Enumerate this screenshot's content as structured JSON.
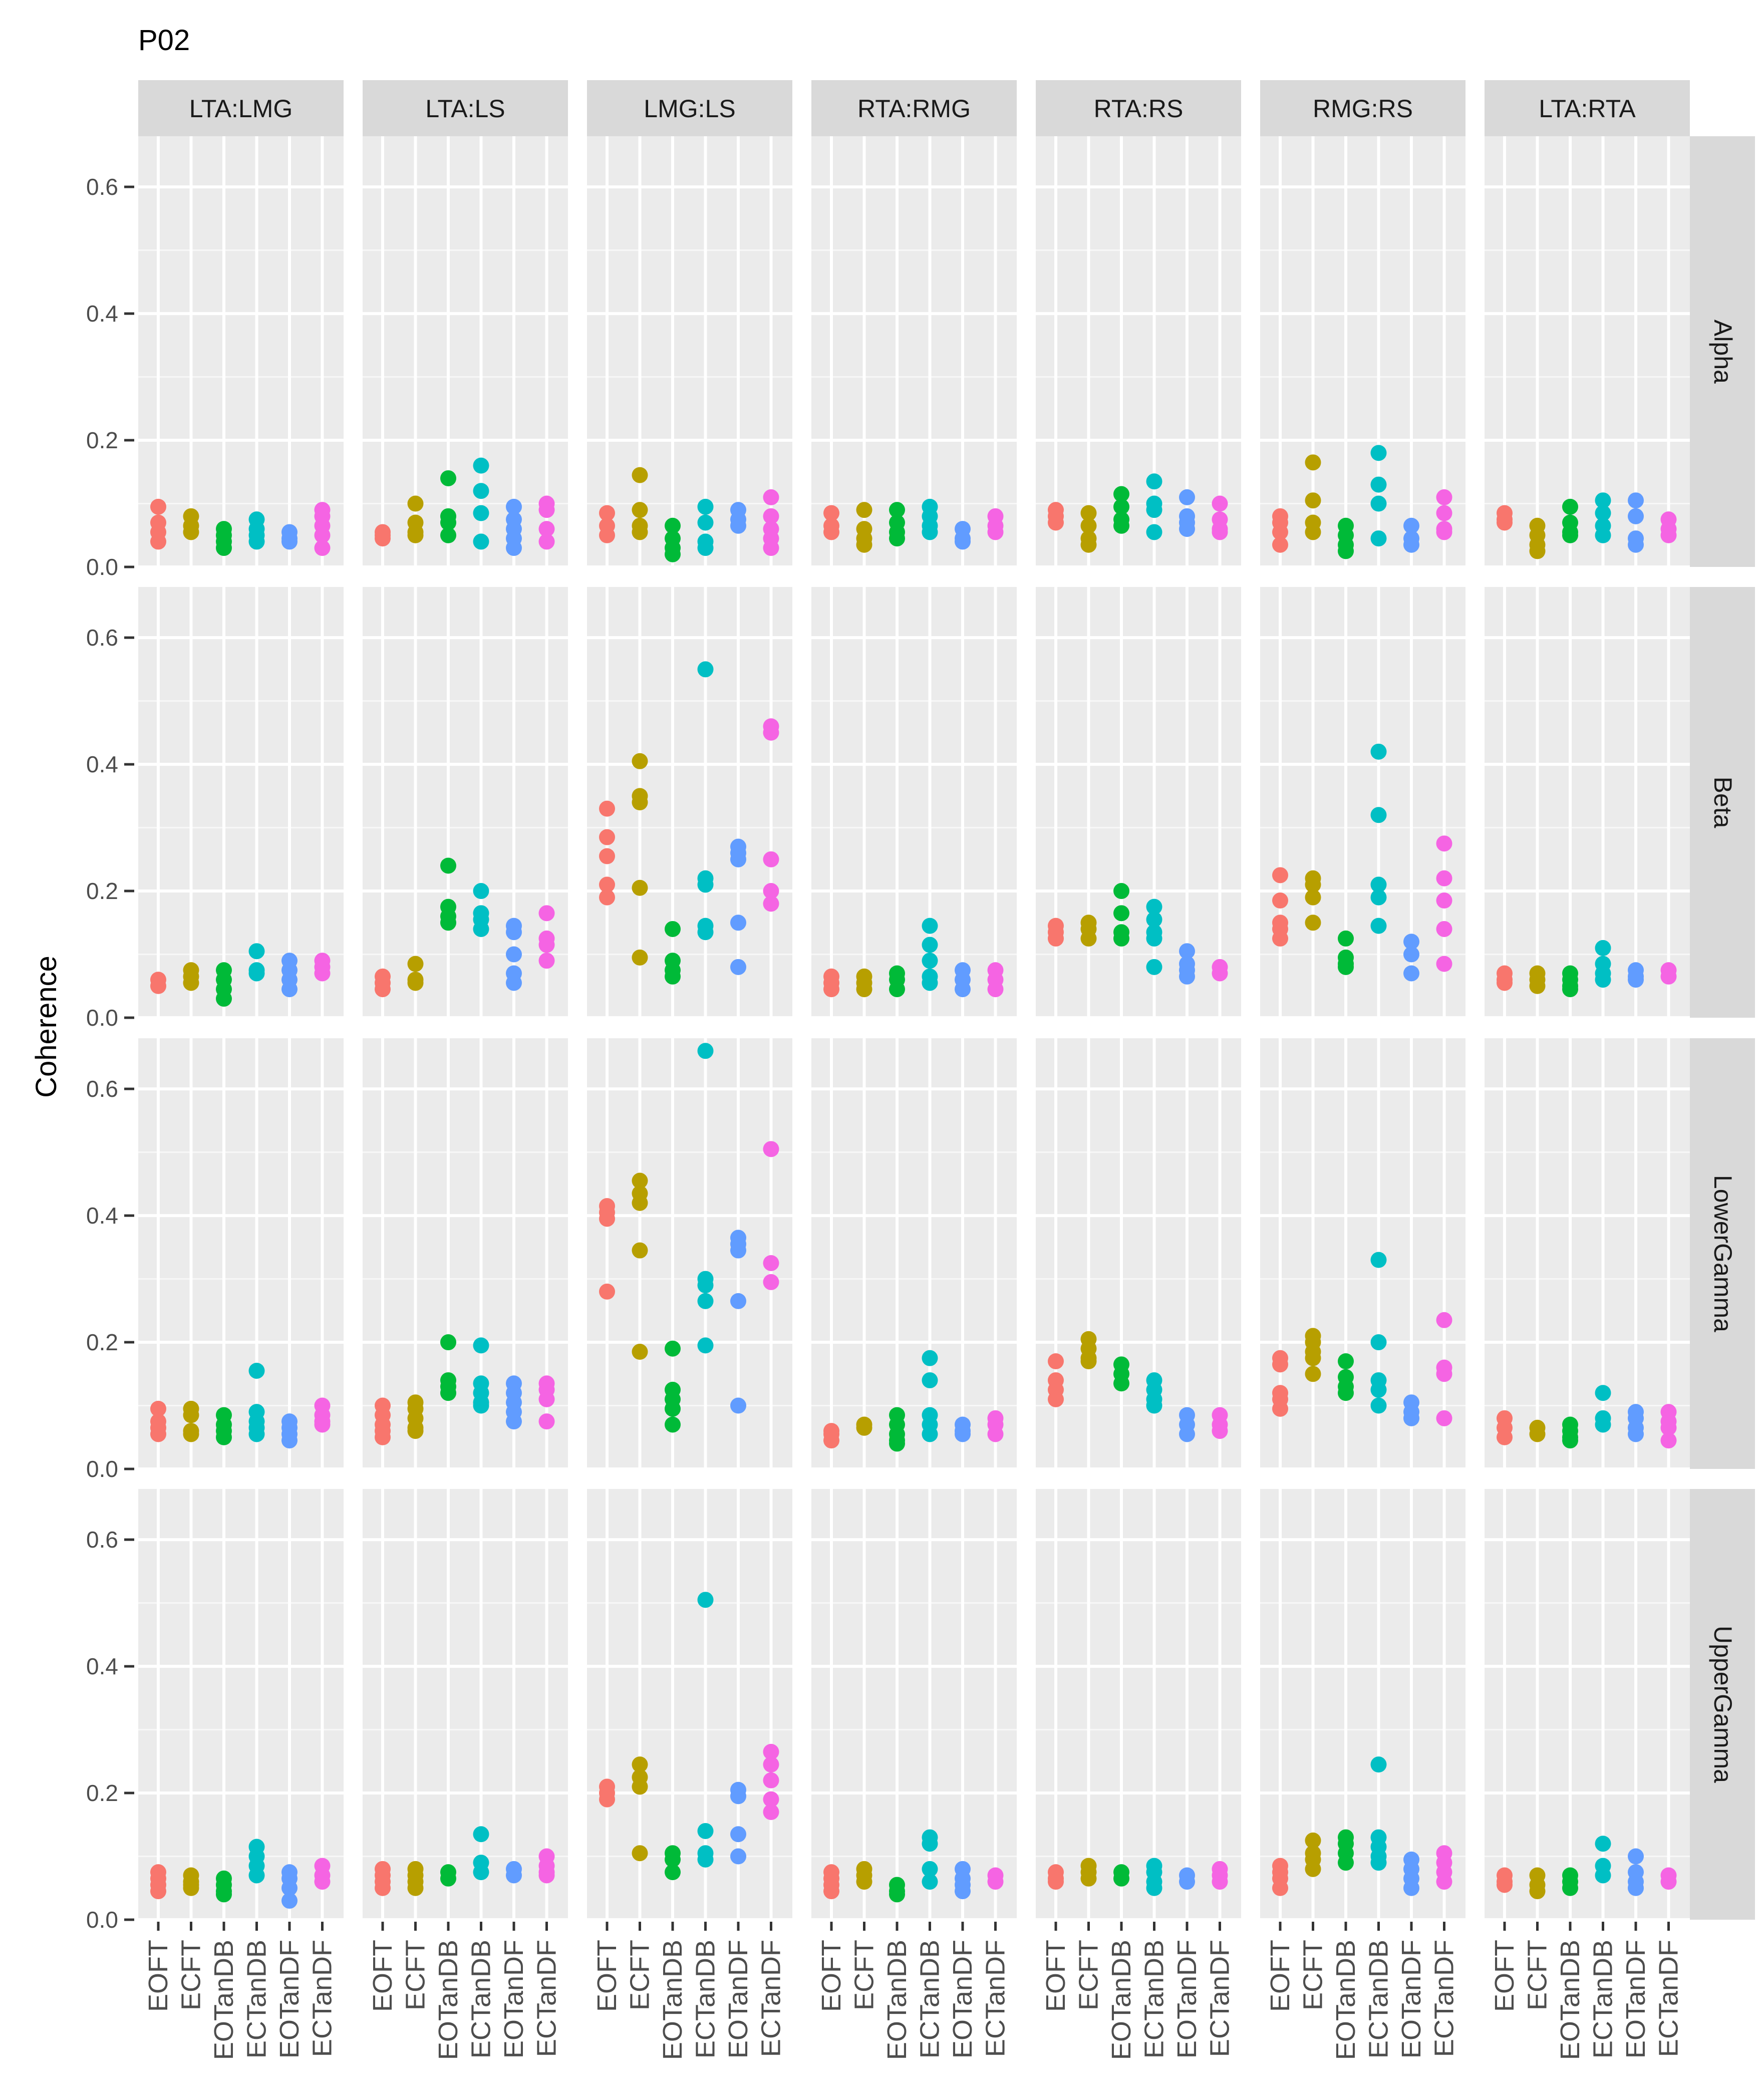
{
  "chart_data": {
    "type": "scatter",
    "title": "P02",
    "ylabel": "Coherence",
    "xlabel": "",
    "ylim": [
      0,
      0.68
    ],
    "yticks": [
      0.0,
      0.2,
      0.4,
      0.6
    ],
    "ytick_labels": [
      "0.0",
      "0.2",
      "0.4",
      "0.6"
    ],
    "grid": true,
    "legend": "none",
    "categories": [
      "EOFT",
      "ECFT",
      "EOTanDB",
      "ECTanDB",
      "EOTanDF",
      "ECTanDF"
    ],
    "colors": {
      "EOFT": "#F8766D",
      "ECFT": "#B79F00",
      "EOTanDB": "#00BA38",
      "ECTanDB": "#00BFC4",
      "EOTanDF": "#619CFF",
      "ECTanDF": "#F564E3"
    },
    "pairs": [
      "LTA:LMG",
      "LTA:LS",
      "LMG:LS",
      "RTA:RMG",
      "RTA:RS",
      "RMG:RS",
      "LTA:RTA"
    ],
    "bands": [
      "Alpha",
      "Beta",
      "LowerGamma",
      "UpperGamma"
    ],
    "values": {
      "Alpha": {
        "LTA:LMG": [
          [
            0.095,
            0.07,
            0.055,
            0.04
          ],
          [
            0.08,
            0.065,
            0.055
          ],
          [
            0.06,
            0.05,
            0.04,
            0.03
          ],
          [
            0.075,
            0.06,
            0.05,
            0.04
          ],
          [
            0.055,
            0.045,
            0.04
          ],
          [
            0.09,
            0.08,
            0.065,
            0.05,
            0.03
          ]
        ],
        "LTA:LS": [
          [
            0.055,
            0.05,
            0.045
          ],
          [
            0.1,
            0.07,
            0.055,
            0.05
          ],
          [
            0.14,
            0.08,
            0.07,
            0.05
          ],
          [
            0.16,
            0.12,
            0.085,
            0.04
          ],
          [
            0.095,
            0.075,
            0.06,
            0.045,
            0.03
          ],
          [
            0.1,
            0.09,
            0.06,
            0.04
          ]
        ],
        "LMG:LS": [
          [
            0.085,
            0.065,
            0.05
          ],
          [
            0.145,
            0.09,
            0.065,
            0.055
          ],
          [
            0.065,
            0.045,
            0.03,
            0.02
          ],
          [
            0.095,
            0.07,
            0.04,
            0.03
          ],
          [
            0.09,
            0.075,
            0.065
          ],
          [
            0.11,
            0.08,
            0.06,
            0.045,
            0.03
          ]
        ],
        "RTA:RMG": [
          [
            0.085,
            0.065,
            0.055
          ],
          [
            0.09,
            0.06,
            0.045,
            0.035
          ],
          [
            0.09,
            0.07,
            0.055,
            0.045
          ],
          [
            0.095,
            0.08,
            0.065,
            0.055
          ],
          [
            0.06,
            0.045,
            0.04
          ],
          [
            0.08,
            0.065,
            0.055
          ]
        ],
        "RTA:RS": [
          [
            0.09,
            0.08,
            0.07
          ],
          [
            0.085,
            0.065,
            0.045,
            0.035
          ],
          [
            0.115,
            0.095,
            0.075,
            0.065
          ],
          [
            0.135,
            0.1,
            0.09,
            0.055
          ],
          [
            0.11,
            0.08,
            0.07,
            0.06
          ],
          [
            0.1,
            0.075,
            0.06,
            0.055
          ]
        ],
        "RMG:RS": [
          [
            0.08,
            0.07,
            0.055,
            0.035
          ],
          [
            0.165,
            0.105,
            0.07,
            0.055
          ],
          [
            0.065,
            0.05,
            0.035,
            0.025
          ],
          [
            0.18,
            0.13,
            0.1,
            0.045
          ],
          [
            0.065,
            0.045,
            0.035
          ],
          [
            0.11,
            0.085,
            0.06,
            0.055
          ]
        ],
        "LTA:RTA": [
          [
            0.085,
            0.075,
            0.07
          ],
          [
            0.065,
            0.05,
            0.035,
            0.025
          ],
          [
            0.095,
            0.07,
            0.055,
            0.05
          ],
          [
            0.105,
            0.085,
            0.065,
            0.05
          ],
          [
            0.105,
            0.08,
            0.045,
            0.035
          ],
          [
            0.075,
            0.06,
            0.05
          ]
        ]
      },
      "Beta": {
        "LTA:LMG": [
          [
            0.06,
            0.05
          ],
          [
            0.075,
            0.065,
            0.055
          ],
          [
            0.075,
            0.06,
            0.045,
            0.03
          ],
          [
            0.105,
            0.075,
            0.07
          ],
          [
            0.09,
            0.075,
            0.06,
            0.045
          ],
          [
            0.09,
            0.08,
            0.07
          ]
        ],
        "LTA:LS": [
          [
            0.065,
            0.055,
            0.045
          ],
          [
            0.085,
            0.06,
            0.055
          ],
          [
            0.24,
            0.175,
            0.16,
            0.15
          ],
          [
            0.2,
            0.165,
            0.155,
            0.14
          ],
          [
            0.145,
            0.135,
            0.1,
            0.07,
            0.055
          ],
          [
            0.165,
            0.125,
            0.115,
            0.09
          ]
        ],
        "LMG:LS": [
          [
            0.33,
            0.285,
            0.255,
            0.21,
            0.19
          ],
          [
            0.405,
            0.35,
            0.34,
            0.205,
            0.095
          ],
          [
            0.14,
            0.09,
            0.075,
            0.065
          ],
          [
            0.55,
            0.22,
            0.21,
            0.145,
            0.135
          ],
          [
            0.27,
            0.26,
            0.25,
            0.15,
            0.08
          ],
          [
            0.46,
            0.45,
            0.25,
            0.2,
            0.18
          ]
        ],
        "RTA:RMG": [
          [
            0.065,
            0.055,
            0.045
          ],
          [
            0.065,
            0.055,
            0.045
          ],
          [
            0.07,
            0.06,
            0.045
          ],
          [
            0.145,
            0.115,
            0.09,
            0.065,
            0.055
          ],
          [
            0.075,
            0.06,
            0.045
          ],
          [
            0.075,
            0.06,
            0.045
          ]
        ],
        "RTA:RS": [
          [
            0.145,
            0.135,
            0.125
          ],
          [
            0.15,
            0.14,
            0.125
          ],
          [
            0.2,
            0.165,
            0.135,
            0.125
          ],
          [
            0.175,
            0.155,
            0.135,
            0.125,
            0.08
          ],
          [
            0.105,
            0.085,
            0.075,
            0.065
          ],
          [
            0.08,
            0.07
          ]
        ],
        "RMG:RS": [
          [
            0.225,
            0.185,
            0.15,
            0.14,
            0.125
          ],
          [
            0.22,
            0.21,
            0.19,
            0.15
          ],
          [
            0.125,
            0.095,
            0.085,
            0.08
          ],
          [
            0.42,
            0.32,
            0.21,
            0.19,
            0.145
          ],
          [
            0.12,
            0.1,
            0.07
          ],
          [
            0.275,
            0.22,
            0.185,
            0.14,
            0.085
          ]
        ],
        "LTA:RTA": [
          [
            0.07,
            0.06,
            0.055
          ],
          [
            0.07,
            0.06,
            0.05
          ],
          [
            0.07,
            0.06,
            0.05,
            0.045
          ],
          [
            0.11,
            0.085,
            0.07,
            0.06
          ],
          [
            0.075,
            0.065,
            0.06
          ],
          [
            0.075,
            0.065
          ]
        ]
      },
      "LowerGamma": {
        "LTA:LMG": [
          [
            0.095,
            0.075,
            0.065,
            0.055
          ],
          [
            0.095,
            0.085,
            0.06,
            0.055
          ],
          [
            0.085,
            0.07,
            0.06,
            0.05
          ],
          [
            0.155,
            0.09,
            0.075,
            0.065,
            0.055
          ],
          [
            0.075,
            0.065,
            0.055,
            0.045
          ],
          [
            0.1,
            0.085,
            0.075,
            0.07
          ]
        ],
        "LTA:LS": [
          [
            0.1,
            0.085,
            0.07,
            0.06,
            0.05
          ],
          [
            0.105,
            0.095,
            0.08,
            0.065,
            0.06
          ],
          [
            0.2,
            0.14,
            0.13,
            0.12
          ],
          [
            0.195,
            0.135,
            0.12,
            0.105,
            0.1
          ],
          [
            0.135,
            0.12,
            0.105,
            0.09,
            0.075
          ],
          [
            0.135,
            0.125,
            0.11,
            0.075
          ]
        ],
        "LMG:LS": [
          [
            0.415,
            0.405,
            0.395,
            0.28
          ],
          [
            0.455,
            0.435,
            0.42,
            0.345,
            0.185
          ],
          [
            0.19,
            0.125,
            0.11,
            0.095,
            0.07
          ],
          [
            0.66,
            0.3,
            0.29,
            0.265,
            0.195
          ],
          [
            0.365,
            0.355,
            0.345,
            0.265,
            0.1
          ],
          [
            0.505,
            0.325,
            0.295
          ]
        ],
        "RTA:RMG": [
          [
            0.06,
            0.055,
            0.045
          ],
          [
            0.07,
            0.065
          ],
          [
            0.085,
            0.07,
            0.055,
            0.045,
            0.04
          ],
          [
            0.175,
            0.14,
            0.085,
            0.07,
            0.055
          ],
          [
            0.07,
            0.06,
            0.055
          ],
          [
            0.08,
            0.07,
            0.055
          ]
        ],
        "RTA:RS": [
          [
            0.17,
            0.14,
            0.125,
            0.11
          ],
          [
            0.205,
            0.19,
            0.175,
            0.17
          ],
          [
            0.165,
            0.15,
            0.135
          ],
          [
            0.14,
            0.125,
            0.11,
            0.1
          ],
          [
            0.085,
            0.07,
            0.055
          ],
          [
            0.085,
            0.07,
            0.06
          ]
        ],
        "RMG:RS": [
          [
            0.175,
            0.165,
            0.12,
            0.11,
            0.095
          ],
          [
            0.21,
            0.2,
            0.185,
            0.175,
            0.15
          ],
          [
            0.17,
            0.145,
            0.13,
            0.12
          ],
          [
            0.33,
            0.2,
            0.14,
            0.125,
            0.1
          ],
          [
            0.105,
            0.09,
            0.08
          ],
          [
            0.235,
            0.16,
            0.15,
            0.08
          ]
        ],
        "LTA:RTA": [
          [
            0.08,
            0.065,
            0.05
          ],
          [
            0.065,
            0.055
          ],
          [
            0.07,
            0.06,
            0.05,
            0.045
          ],
          [
            0.12,
            0.08,
            0.07
          ],
          [
            0.09,
            0.08,
            0.065,
            0.055
          ],
          [
            0.09,
            0.075,
            0.065,
            0.045
          ]
        ]
      },
      "UpperGamma": {
        "LTA:LMG": [
          [
            0.075,
            0.065,
            0.055,
            0.045
          ],
          [
            0.07,
            0.06,
            0.055,
            0.05
          ],
          [
            0.065,
            0.055,
            0.045,
            0.04
          ],
          [
            0.115,
            0.1,
            0.085,
            0.07
          ],
          [
            0.075,
            0.065,
            0.05,
            0.03
          ],
          [
            0.085,
            0.07,
            0.06
          ]
        ],
        "LTA:LS": [
          [
            0.08,
            0.07,
            0.06,
            0.05
          ],
          [
            0.08,
            0.07,
            0.06,
            0.05
          ],
          [
            0.075,
            0.065
          ],
          [
            0.135,
            0.09,
            0.075
          ],
          [
            0.08,
            0.07
          ],
          [
            0.1,
            0.085,
            0.075,
            0.07
          ]
        ],
        "LMG:LS": [
          [
            0.21,
            0.2,
            0.19
          ],
          [
            0.245,
            0.225,
            0.21,
            0.105
          ],
          [
            0.105,
            0.095,
            0.075
          ],
          [
            0.505,
            0.14,
            0.105,
            0.095
          ],
          [
            0.205,
            0.195,
            0.135,
            0.1
          ],
          [
            0.265,
            0.245,
            0.22,
            0.19,
            0.17
          ]
        ],
        "RTA:RMG": [
          [
            0.075,
            0.065,
            0.055,
            0.045
          ],
          [
            0.08,
            0.07,
            0.06
          ],
          [
            0.055,
            0.045,
            0.04
          ],
          [
            0.13,
            0.12,
            0.08,
            0.06
          ],
          [
            0.08,
            0.065,
            0.055,
            0.045
          ],
          [
            0.07,
            0.06
          ]
        ],
        "RTA:RS": [
          [
            0.075,
            0.065,
            0.06
          ],
          [
            0.085,
            0.075,
            0.065
          ],
          [
            0.075,
            0.065
          ],
          [
            0.085,
            0.075,
            0.06,
            0.05
          ],
          [
            0.07,
            0.06
          ],
          [
            0.08,
            0.07,
            0.06
          ]
        ],
        "RMG:RS": [
          [
            0.085,
            0.075,
            0.065,
            0.05
          ],
          [
            0.125,
            0.105,
            0.095,
            0.08
          ],
          [
            0.13,
            0.12,
            0.105,
            0.09
          ],
          [
            0.245,
            0.13,
            0.115,
            0.1,
            0.09
          ],
          [
            0.095,
            0.08,
            0.065,
            0.05
          ],
          [
            0.105,
            0.09,
            0.075,
            0.06
          ]
        ],
        "LTA:RTA": [
          [
            0.07,
            0.06,
            0.055
          ],
          [
            0.07,
            0.055,
            0.045
          ],
          [
            0.07,
            0.06,
            0.05
          ],
          [
            0.12,
            0.085,
            0.07
          ],
          [
            0.1,
            0.075,
            0.06,
            0.05
          ],
          [
            0.07,
            0.06
          ]
        ]
      }
    }
  }
}
